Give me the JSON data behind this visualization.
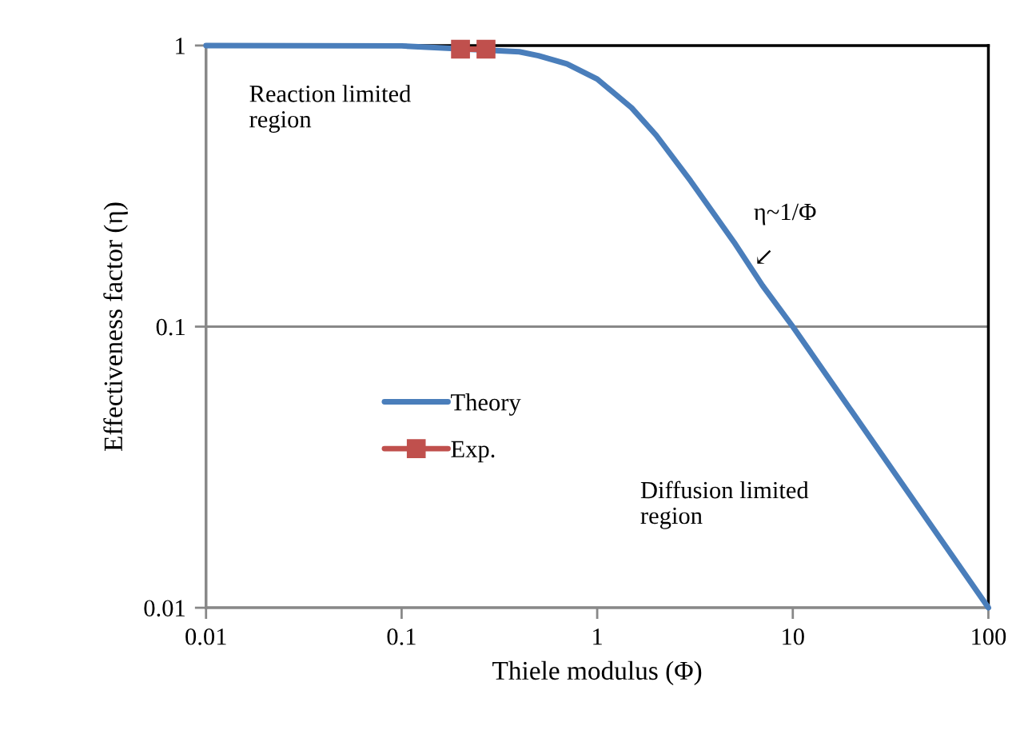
{
  "chart_data": {
    "type": "line",
    "xlabel": "Thiele modulus (Φ)",
    "ylabel": "Effectiveness factor (η)",
    "log": "xy",
    "xlim": [
      0.01,
      100
    ],
    "ylim": [
      0.01,
      1
    ],
    "xticks": [
      0.01,
      0.1,
      1,
      10,
      100
    ],
    "yticks": [
      0.01,
      0.1,
      1
    ],
    "grid": "y",
    "legend": "left",
    "series": [
      {
        "name": "Theory",
        "color": "#4a7ebb",
        "marker": "none",
        "line_style": "solid",
        "x": [
          0.01,
          0.1,
          0.4,
          0.5,
          0.7,
          1,
          1.5,
          2,
          3,
          5,
          7,
          10,
          20,
          50,
          100
        ],
        "values": [
          1.0,
          0.997,
          0.95,
          0.92,
          0.86,
          0.76,
          0.6,
          0.48,
          0.33,
          0.2,
          0.14,
          0.1,
          0.05,
          0.02,
          0.01
        ]
      },
      {
        "name": "Exp.",
        "color": "#c0504d",
        "marker": "square",
        "line_style": "solid",
        "x": [
          0.2,
          0.27
        ],
        "values": [
          0.97,
          0.97
        ]
      }
    ],
    "annotations": [
      "Reaction limited\nregion",
      "η~1/Φ",
      "↙",
      "Diffusion limited\nregion"
    ]
  }
}
